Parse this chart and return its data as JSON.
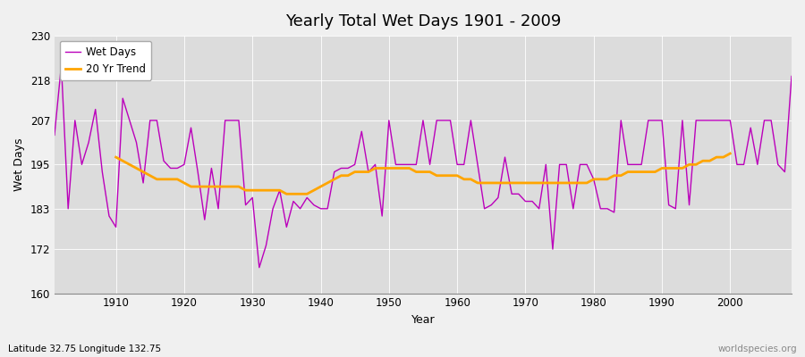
{
  "title": "Yearly Total Wet Days 1901 - 2009",
  "xlabel": "Year",
  "ylabel": "Wet Days",
  "subtitle": "Latitude 32.75 Longitude 132.75",
  "watermark": "worldspecies.org",
  "ylim": [
    160,
    230
  ],
  "yticks": [
    160,
    172,
    183,
    195,
    207,
    218,
    230
  ],
  "xticks": [
    1910,
    1920,
    1930,
    1940,
    1950,
    1960,
    1970,
    1980,
    1990,
    2000
  ],
  "legend_labels": [
    "Wet Days",
    "20 Yr Trend"
  ],
  "wet_days_color": "#bb00bb",
  "trend_color": "#ffa500",
  "bg_color": "#dcdcdc",
  "years": [
    1901,
    1902,
    1903,
    1904,
    1905,
    1906,
    1907,
    1908,
    1909,
    1910,
    1911,
    1912,
    1913,
    1914,
    1915,
    1916,
    1917,
    1918,
    1919,
    1920,
    1921,
    1922,
    1923,
    1924,
    1925,
    1926,
    1927,
    1928,
    1929,
    1930,
    1931,
    1932,
    1933,
    1934,
    1935,
    1936,
    1937,
    1938,
    1939,
    1940,
    1941,
    1942,
    1943,
    1944,
    1945,
    1946,
    1947,
    1948,
    1949,
    1950,
    1951,
    1952,
    1953,
    1954,
    1955,
    1956,
    1957,
    1958,
    1959,
    1960,
    1961,
    1962,
    1963,
    1964,
    1965,
    1966,
    1967,
    1968,
    1969,
    1970,
    1971,
    1972,
    1973,
    1974,
    1975,
    1976,
    1977,
    1978,
    1979,
    1980,
    1981,
    1982,
    1983,
    1984,
    1985,
    1986,
    1987,
    1988,
    1989,
    1990,
    1991,
    1992,
    1993,
    1994,
    1995,
    1996,
    1997,
    1998,
    1999,
    2000,
    2001,
    2002,
    2003,
    2004,
    2005,
    2006,
    2007,
    2008,
    2009
  ],
  "wet_days": [
    203,
    222,
    183,
    207,
    195,
    201,
    210,
    193,
    181,
    178,
    213,
    207,
    201,
    190,
    207,
    207,
    196,
    194,
    194,
    195,
    205,
    193,
    180,
    194,
    183,
    207,
    207,
    207,
    184,
    186,
    167,
    173,
    183,
    188,
    178,
    185,
    183,
    186,
    184,
    183,
    183,
    193,
    194,
    194,
    195,
    204,
    193,
    195,
    181,
    207,
    195,
    195,
    195,
    195,
    207,
    195,
    207,
    207,
    207,
    195,
    195,
    207,
    195,
    183,
    184,
    186,
    197,
    187,
    187,
    185,
    185,
    183,
    195,
    172,
    195,
    195,
    183,
    195,
    195,
    191,
    183,
    183,
    182,
    207,
    195,
    195,
    195,
    207,
    207,
    207,
    184,
    183,
    207,
    184,
    207,
    207,
    207,
    207,
    207,
    207,
    195,
    195,
    205,
    195,
    207,
    207,
    195,
    193,
    219
  ],
  "trend": [
    null,
    null,
    null,
    null,
    null,
    null,
    null,
    null,
    null,
    197,
    196,
    195,
    194,
    193,
    192,
    191,
    191,
    191,
    191,
    190,
    189,
    189,
    189,
    189,
    189,
    189,
    189,
    189,
    188,
    188,
    188,
    188,
    188,
    188,
    187,
    187,
    187,
    187,
    188,
    189,
    190,
    191,
    192,
    192,
    193,
    193,
    193,
    194,
    194,
    194,
    194,
    194,
    194,
    193,
    193,
    193,
    192,
    192,
    192,
    192,
    191,
    191,
    190,
    190,
    190,
    190,
    190,
    190,
    190,
    190,
    190,
    190,
    190,
    190,
    190,
    190,
    190,
    190,
    190,
    191,
    191,
    191,
    192,
    192,
    193,
    193,
    193,
    193,
    193,
    194,
    194,
    194,
    194,
    195,
    195,
    196,
    196,
    197,
    197,
    198,
    null,
    null,
    null,
    null,
    null,
    null,
    null,
    null,
    null
  ]
}
